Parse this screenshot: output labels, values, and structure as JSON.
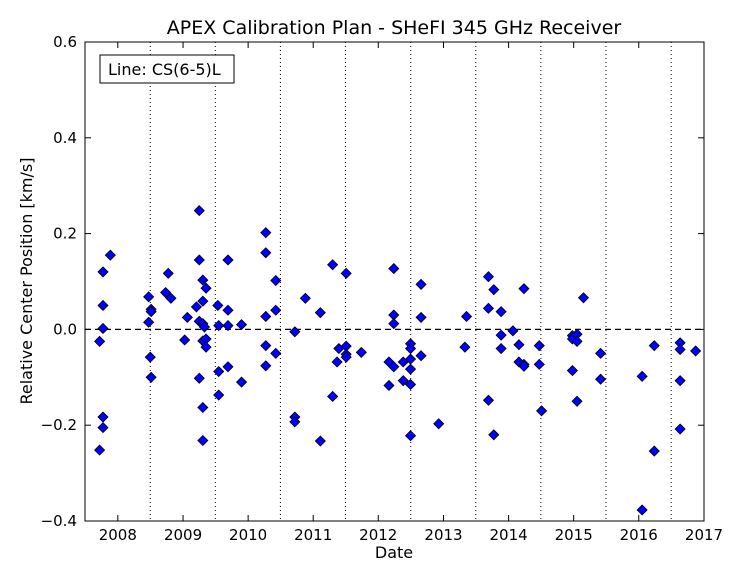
{
  "chart_data": {
    "type": "scatter",
    "title": "APEX Calibration Plan - SHeFI 345 GHz Receiver",
    "xlabel": "Date",
    "ylabel": "Relative Center Position [km/s]",
    "xlim": [
      "2007-07-01",
      "2017-01-01"
    ],
    "ylim": [
      -0.4,
      0.6
    ],
    "yticks": [
      -0.4,
      -0.2,
      0.0,
      0.2,
      0.4,
      0.6
    ],
    "yticklabels": [
      "−0.4",
      "−0.2",
      "0.0",
      "0.2",
      "0.4",
      "0.6"
    ],
    "xticks": [
      "2008-01-01",
      "2009-01-01",
      "2010-01-01",
      "2011-01-01",
      "2012-01-01",
      "2013-01-01",
      "2014-01-01",
      "2015-01-01",
      "2016-01-01",
      "2017-01-01"
    ],
    "xticklabels": [
      "2008",
      "2009",
      "2010",
      "2011",
      "2012",
      "2013",
      "2014",
      "2015",
      "2016",
      "2017"
    ],
    "reference_line": {
      "y": 0.0,
      "style": "dashed"
    },
    "vertical_dotted_lines": [
      "2008-07-01",
      "2009-07-01",
      "2010-07-01",
      "2011-07-01",
      "2012-07-01",
      "2013-07-01",
      "2014-07-01",
      "2015-07-01",
      "2016-07-01"
    ],
    "annotation": "Line: CS(6-5)L",
    "annotation_position": "top-left",
    "marker_color": "#0000ff",
    "grid": false,
    "points": [
      {
        "x": "2007-09-21",
        "y": -0.025
      },
      {
        "x": "2007-09-21",
        "y": -0.252
      },
      {
        "x": "2007-10-10",
        "y": 0.12
      },
      {
        "x": "2007-10-10",
        "y": 0.05
      },
      {
        "x": "2007-10-10",
        "y": 0.002
      },
      {
        "x": "2007-10-10",
        "y": -0.183
      },
      {
        "x": "2007-10-10",
        "y": -0.205
      },
      {
        "x": "2007-11-20",
        "y": 0.155
      },
      {
        "x": "2008-06-22",
        "y": 0.068
      },
      {
        "x": "2008-06-22",
        "y": 0.015
      },
      {
        "x": "2008-07-01",
        "y": -0.058
      },
      {
        "x": "2008-07-06",
        "y": 0.042
      },
      {
        "x": "2008-07-06",
        "y": 0.037
      },
      {
        "x": "2008-07-06",
        "y": -0.1
      },
      {
        "x": "2008-09-25",
        "y": 0.077
      },
      {
        "x": "2008-10-10",
        "y": 0.117
      },
      {
        "x": "2008-10-25",
        "y": 0.065
      },
      {
        "x": "2009-01-10",
        "y": -0.022
      },
      {
        "x": "2009-01-25",
        "y": 0.025
      },
      {
        "x": "2009-03-17",
        "y": 0.047
      },
      {
        "x": "2009-04-02",
        "y": 0.248
      },
      {
        "x": "2009-04-02",
        "y": 0.145
      },
      {
        "x": "2009-04-02",
        "y": 0.017
      },
      {
        "x": "2009-04-02",
        "y": -0.102
      },
      {
        "x": "2009-04-22",
        "y": 0.103
      },
      {
        "x": "2009-04-22",
        "y": 0.059
      },
      {
        "x": "2009-04-22",
        "y": 0.012
      },
      {
        "x": "2009-04-22",
        "y": -0.024
      },
      {
        "x": "2009-04-22",
        "y": -0.163
      },
      {
        "x": "2009-04-22",
        "y": -0.232
      },
      {
        "x": "2009-05-01",
        "y": 0.005
      },
      {
        "x": "2009-05-10",
        "y": 0.086
      },
      {
        "x": "2009-05-10",
        "y": -0.02
      },
      {
        "x": "2009-05-10",
        "y": -0.037
      },
      {
        "x": "2009-07-15",
        "y": 0.05
      },
      {
        "x": "2009-07-20",
        "y": 0.008
      },
      {
        "x": "2009-07-20",
        "y": -0.088
      },
      {
        "x": "2009-07-20",
        "y": -0.137
      },
      {
        "x": "2009-09-10",
        "y": 0.145
      },
      {
        "x": "2009-09-10",
        "y": 0.04
      },
      {
        "x": "2009-09-10",
        "y": 0.008
      },
      {
        "x": "2009-09-10",
        "y": -0.078
      },
      {
        "x": "2009-11-25",
        "y": 0.01
      },
      {
        "x": "2009-11-25",
        "y": -0.11
      },
      {
        "x": "2010-04-10",
        "y": 0.202
      },
      {
        "x": "2010-04-10",
        "y": 0.16
      },
      {
        "x": "2010-04-10",
        "y": 0.027
      },
      {
        "x": "2010-04-10",
        "y": -0.034
      },
      {
        "x": "2010-04-10",
        "y": -0.076
      },
      {
        "x": "2010-06-05",
        "y": 0.102
      },
      {
        "x": "2010-06-05",
        "y": 0.04
      },
      {
        "x": "2010-06-05",
        "y": -0.05
      },
      {
        "x": "2010-09-20",
        "y": -0.005
      },
      {
        "x": "2010-09-20",
        "y": -0.183
      },
      {
        "x": "2010-09-20",
        "y": -0.193
      },
      {
        "x": "2010-11-18",
        "y": 0.065
      },
      {
        "x": "2011-02-10",
        "y": 0.035
      },
      {
        "x": "2011-02-10",
        "y": -0.233
      },
      {
        "x": "2011-04-20",
        "y": 0.135
      },
      {
        "x": "2011-04-20",
        "y": -0.14
      },
      {
        "x": "2011-05-15",
        "y": -0.068
      },
      {
        "x": "2011-05-25",
        "y": -0.04
      },
      {
        "x": "2011-07-05",
        "y": 0.117
      },
      {
        "x": "2011-07-05",
        "y": -0.035
      },
      {
        "x": "2011-07-05",
        "y": -0.052
      },
      {
        "x": "2011-07-05",
        "y": -0.058
      },
      {
        "x": "2011-09-28",
        "y": -0.048
      },
      {
        "x": "2012-03-01",
        "y": -0.068
      },
      {
        "x": "2012-03-01",
        "y": -0.117
      },
      {
        "x": "2012-03-28",
        "y": 0.127
      },
      {
        "x": "2012-03-28",
        "y": 0.03
      },
      {
        "x": "2012-03-28",
        "y": 0.012
      },
      {
        "x": "2012-03-28",
        "y": -0.078
      },
      {
        "x": "2012-05-20",
        "y": -0.068
      },
      {
        "x": "2012-05-20",
        "y": -0.107
      },
      {
        "x": "2012-06-30",
        "y": -0.03
      },
      {
        "x": "2012-06-30",
        "y": -0.04
      },
      {
        "x": "2012-06-30",
        "y": -0.062
      },
      {
        "x": "2012-06-30",
        "y": -0.083
      },
      {
        "x": "2012-06-30",
        "y": -0.115
      },
      {
        "x": "2012-06-30",
        "y": -0.222
      },
      {
        "x": "2012-08-28",
        "y": 0.094
      },
      {
        "x": "2012-08-28",
        "y": 0.025
      },
      {
        "x": "2012-08-28",
        "y": -0.055
      },
      {
        "x": "2012-12-05",
        "y": -0.197
      },
      {
        "x": "2013-05-01",
        "y": -0.037
      },
      {
        "x": "2013-05-10",
        "y": 0.027
      },
      {
        "x": "2013-09-10",
        "y": 0.11
      },
      {
        "x": "2013-09-10",
        "y": 0.044
      },
      {
        "x": "2013-09-10",
        "y": -0.148
      },
      {
        "x": "2013-10-10",
        "y": 0.083
      },
      {
        "x": "2013-10-10",
        "y": -0.22
      },
      {
        "x": "2013-11-20",
        "y": 0.037
      },
      {
        "x": "2013-11-20",
        "y": -0.012
      },
      {
        "x": "2013-11-20",
        "y": -0.04
      },
      {
        "x": "2014-01-25",
        "y": -0.003
      },
      {
        "x": "2014-02-28",
        "y": -0.032
      },
      {
        "x": "2014-02-28",
        "y": -0.068
      },
      {
        "x": "2014-03-28",
        "y": 0.085
      },
      {
        "x": "2014-03-28",
        "y": -0.073
      },
      {
        "x": "2014-03-28",
        "y": -0.077
      },
      {
        "x": "2014-06-22",
        "y": -0.034
      },
      {
        "x": "2014-06-22",
        "y": -0.073
      },
      {
        "x": "2014-07-05",
        "y": -0.17
      },
      {
        "x": "2014-12-25",
        "y": -0.013
      },
      {
        "x": "2014-12-25",
        "y": -0.02
      },
      {
        "x": "2014-12-25",
        "y": -0.086
      },
      {
        "x": "2015-01-20",
        "y": -0.01
      },
      {
        "x": "2015-01-20",
        "y": -0.025
      },
      {
        "x": "2015-01-20",
        "y": -0.15
      },
      {
        "x": "2015-02-25",
        "y": 0.066
      },
      {
        "x": "2015-06-01",
        "y": -0.05
      },
      {
        "x": "2015-06-01",
        "y": -0.104
      },
      {
        "x": "2016-01-20",
        "y": -0.098
      },
      {
        "x": "2016-01-20",
        "y": -0.377
      },
      {
        "x": "2016-03-28",
        "y": -0.034
      },
      {
        "x": "2016-03-28",
        "y": -0.254
      },
      {
        "x": "2016-08-20",
        "y": -0.028
      },
      {
        "x": "2016-08-20",
        "y": -0.042
      },
      {
        "x": "2016-08-20",
        "y": -0.107
      },
      {
        "x": "2016-08-20",
        "y": -0.208
      },
      {
        "x": "2016-11-15",
        "y": -0.045
      }
    ]
  }
}
